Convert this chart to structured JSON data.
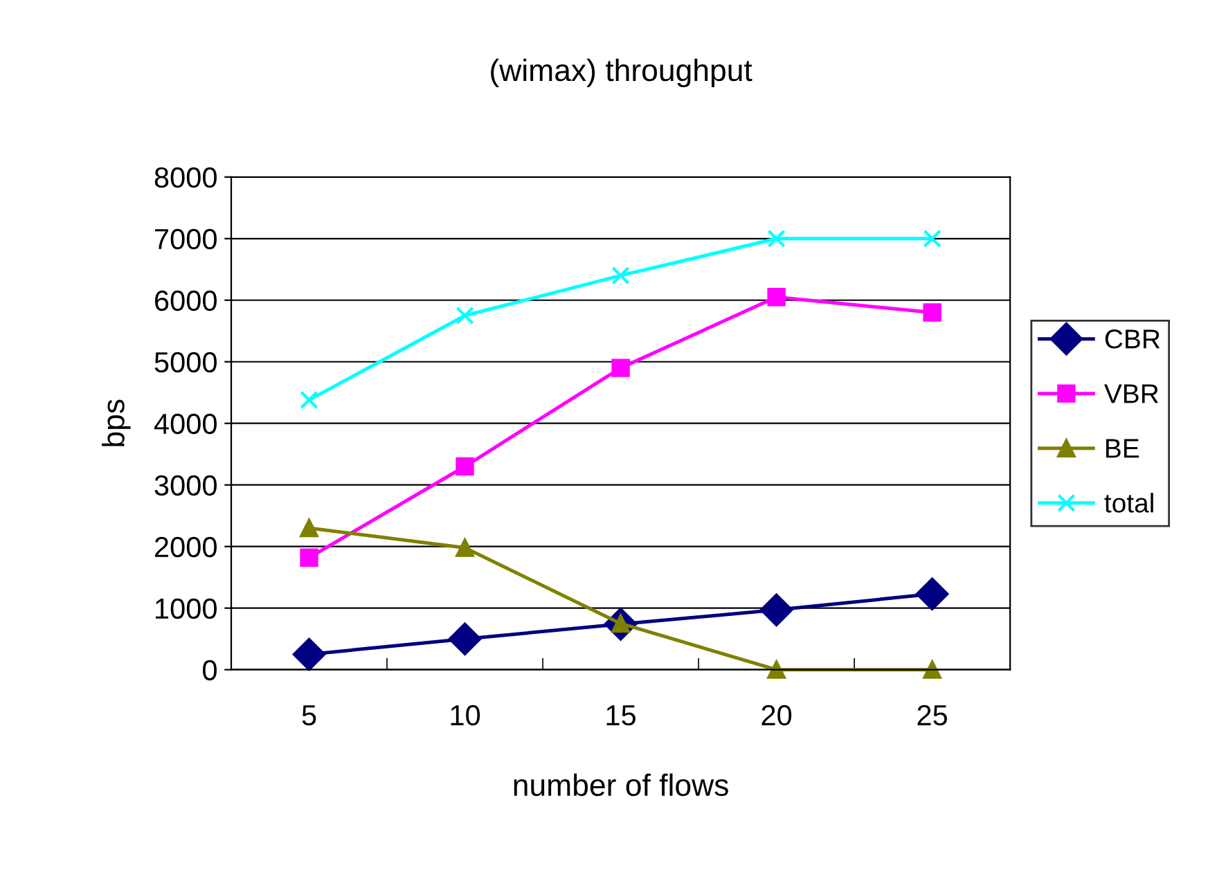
{
  "chart_data": {
    "type": "line",
    "title": "(wimax) throughput",
    "xlabel": "number of flows",
    "ylabel": "bps",
    "categories": [
      "5",
      "10",
      "15",
      "20",
      "25"
    ],
    "series": [
      {
        "name": "CBR",
        "color": "#000080",
        "marker": "diamond",
        "values": [
          250,
          500,
          740,
          970,
          1230
        ]
      },
      {
        "name": "VBR",
        "color": "#ff00ff",
        "marker": "square",
        "values": [
          1820,
          3300,
          4900,
          6050,
          5800
        ]
      },
      {
        "name": "BE",
        "color": "#808000",
        "marker": "triangle",
        "values": [
          2300,
          1980,
          750,
          0,
          0
        ]
      },
      {
        "name": "total",
        "color": "#00ffff",
        "marker": "cross",
        "values": [
          4380,
          5750,
          6400,
          7000,
          7000
        ]
      }
    ],
    "ylim": [
      0,
      8000
    ],
    "yticks": [
      0,
      1000,
      2000,
      3000,
      4000,
      5000,
      6000,
      7000,
      8000
    ],
    "grid": "y",
    "legend": "right"
  }
}
